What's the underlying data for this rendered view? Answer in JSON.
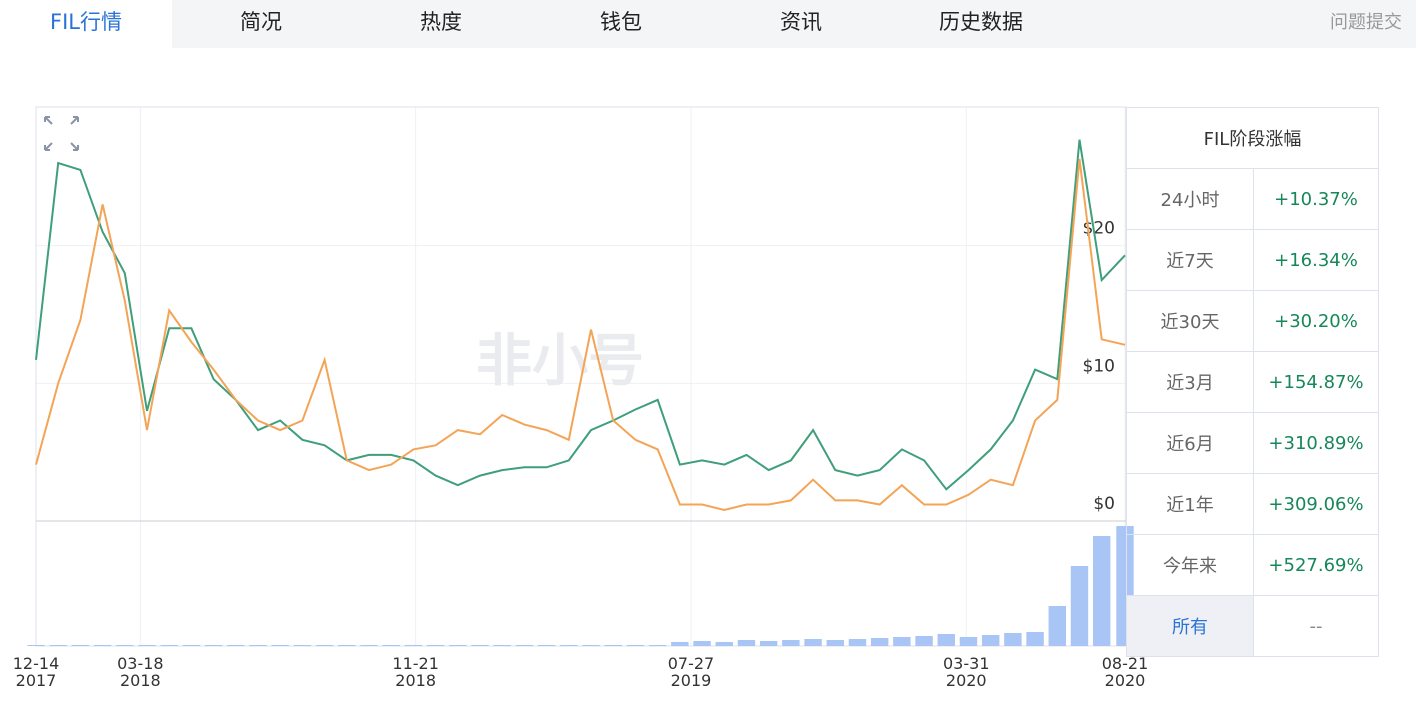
{
  "tabs": [
    "FIL行情",
    "简况",
    "热度",
    "钱包",
    "资讯",
    "历史数据"
  ],
  "report_link": "问题提交",
  "chart_data": {
    "type": "line",
    "watermark": "非小号",
    "x": [
      "2017-12-14",
      "2018-01-03",
      "2018-01-23",
      "2018-02-12",
      "2018-03-04",
      "2018-03-24",
      "2018-04-13",
      "2018-05-03",
      "2018-05-23",
      "2018-06-12",
      "2018-07-02",
      "2018-07-22",
      "2018-08-11",
      "2018-08-31",
      "2018-09-20",
      "2018-10-10",
      "2018-10-30",
      "2018-11-19",
      "2018-12-09",
      "2018-12-29",
      "2019-01-18",
      "2019-02-07",
      "2019-02-27",
      "2019-03-19",
      "2019-04-08",
      "2019-04-28",
      "2019-05-18",
      "2019-06-07",
      "2019-06-27",
      "2019-07-17",
      "2019-08-06",
      "2019-08-26",
      "2019-09-15",
      "2019-10-05",
      "2019-10-25",
      "2019-11-14",
      "2019-12-04",
      "2019-12-24",
      "2020-01-13",
      "2020-02-02",
      "2020-02-22",
      "2020-03-13",
      "2020-04-02",
      "2020-04-22",
      "2020-05-12",
      "2020-06-01",
      "2020-06-21",
      "2020-07-11",
      "2020-07-31",
      "2020-08-21"
    ],
    "series": [
      {
        "color": "#3f9f7a",
        "values": [
          11.7,
          26,
          25.5,
          21,
          18,
          8,
          14,
          14,
          10.3,
          8.8,
          6.6,
          7.3,
          5.9,
          5.5,
          4.4,
          4.8,
          4.8,
          4.4,
          3.3,
          2.6,
          3.3,
          3.7,
          3.9,
          3.9,
          4.4,
          6.6,
          7.3,
          8.1,
          8.8,
          4.1,
          4.4,
          4.1,
          4.8,
          3.7,
          4.4,
          6.6,
          3.7,
          3.3,
          3.7,
          5.2,
          4.4,
          2.3,
          3.7,
          5.2,
          7.3,
          11,
          10.3,
          27.7,
          17.5,
          19.3
        ]
      },
      {
        "color": "#f4a456",
        "values": [
          4.1,
          10,
          14.6,
          23,
          16,
          6.6,
          15.3,
          13,
          11,
          8.8,
          7.3,
          6.6,
          7.3,
          11.7,
          4.4,
          3.7,
          4.1,
          5.2,
          5.5,
          6.6,
          6.3,
          7.7,
          7,
          6.6,
          5.9,
          13.9,
          7.3,
          5.9,
          5.2,
          1.2,
          1.2,
          0.8,
          1.2,
          1.2,
          1.5,
          3,
          1.5,
          1.5,
          1.2,
          2.6,
          1.2,
          1.2,
          1.9,
          3,
          2.6,
          7.3,
          8.8,
          26.3,
          13.2,
          12.8
        ]
      }
    ],
    "volume": {
      "color": "#a9c5f5",
      "values": [
        1,
        1,
        1,
        1,
        1,
        1,
        1,
        1,
        1,
        1,
        1,
        1,
        1,
        1,
        1,
        1,
        1,
        1,
        1,
        1,
        1,
        1,
        1,
        1,
        1,
        1,
        1,
        1,
        1,
        4,
        5,
        4,
        6,
        5,
        6,
        7,
        6,
        7,
        8,
        9,
        10,
        12,
        9,
        11,
        13,
        14,
        40,
        80,
        110,
        120
      ]
    },
    "xlim": [
      "2017-12-14",
      "2020-08-21"
    ],
    "xticks": [
      {
        "value": "2017-12-14",
        "label": "12-14\n2017"
      },
      {
        "value": "2018-03-18",
        "label": "03-18\n2018"
      },
      {
        "value": "2018-11-21",
        "label": "11-21\n2018"
      },
      {
        "value": "2019-07-27",
        "label": "07-27\n2019"
      },
      {
        "value": "2020-03-31",
        "label": "03-31\n2020"
      },
      {
        "value": "2020-08-21",
        "label": "08-21\n2020"
      }
    ],
    "ylim": [
      0,
      30
    ],
    "yticks": [
      {
        "value": 0,
        "label": "$0"
      },
      {
        "value": 10,
        "label": "$10"
      },
      {
        "value": 20,
        "label": "$20"
      }
    ],
    "grid": true
  },
  "stats": {
    "title": "FIL阶段涨幅",
    "rows": [
      [
        "24小时",
        "+10.37%"
      ],
      [
        "近7天",
        "+16.34%"
      ],
      [
        "近30天",
        "+30.20%"
      ],
      [
        "近3月",
        "+154.87%"
      ],
      [
        "近6月",
        "+310.89%"
      ],
      [
        "近1年",
        "+309.06%"
      ],
      [
        "今年来",
        "+527.69%"
      ],
      [
        "所有",
        "--"
      ]
    ]
  }
}
